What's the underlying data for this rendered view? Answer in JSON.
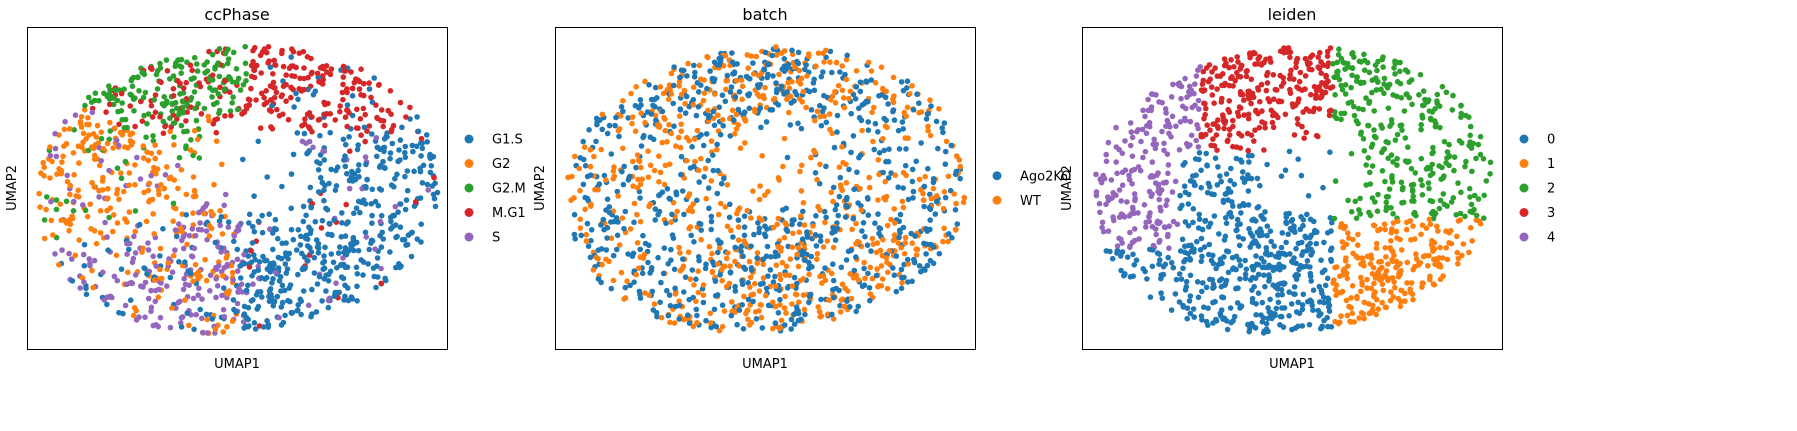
{
  "chart_data": [
    {
      "type": "scatter",
      "title": "ccPhase",
      "xlabel": "UMAP1",
      "ylabel": "UMAP2",
      "legend_position": "right",
      "grid": false,
      "categories": [
        "G1.S",
        "G2",
        "G2.M",
        "M.G1",
        "S"
      ],
      "colors": [
        "#1f77b4",
        "#ff7f0e",
        "#2ca02c",
        "#d62728",
        "#9467bd"
      ],
      "approx_points_per_category": [
        520,
        250,
        170,
        330,
        230
      ],
      "category_regions": [
        "right and lower-right interior",
        "left edge and lower-left",
        "upper-left arc",
        "top and upper-right arc",
        "bottom-center and left-center"
      ]
    },
    {
      "type": "scatter",
      "title": "batch",
      "xlabel": "UMAP1",
      "ylabel": "UMAP2",
      "legend_position": "right",
      "grid": false,
      "categories": [
        "Ago2KO",
        "WT"
      ],
      "colors": [
        "#1f77b4",
        "#ff7f0e"
      ],
      "approx_points_per_category": [
        800,
        700
      ],
      "category_regions": [
        "mixed throughout",
        "mixed throughout"
      ]
    },
    {
      "type": "scatter",
      "title": "leiden",
      "xlabel": "UMAP1",
      "ylabel": "UMAP2",
      "legend_position": "right",
      "grid": false,
      "categories": [
        "0",
        "1",
        "2",
        "3",
        "4"
      ],
      "colors": [
        "#1f77b4",
        "#ff7f0e",
        "#2ca02c",
        "#d62728",
        "#9467bd"
      ],
      "approx_points_per_category": [
        450,
        360,
        330,
        220,
        190
      ],
      "category_regions": [
        "lower-left and center",
        "lower-right",
        "upper-right",
        "top-left",
        "left edge"
      ]
    }
  ]
}
